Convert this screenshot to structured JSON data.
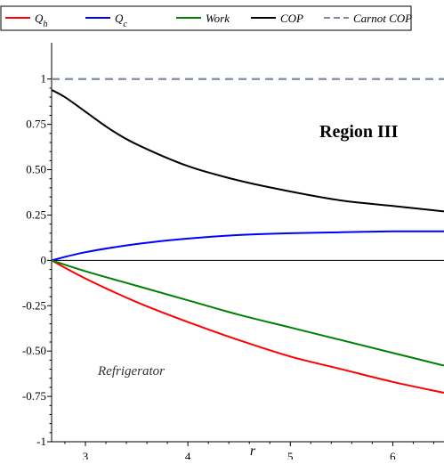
{
  "chart_data": {
    "type": "line",
    "xlabel": "r",
    "ylabel": "",
    "xlim": [
      2.67,
      6.5
    ],
    "ylim": [
      -1,
      1.2
    ],
    "x_ticks": [
      3,
      4,
      5,
      6
    ],
    "y_ticks": [
      {
        "value": 1,
        "label": "1"
      },
      {
        "value": 0.75,
        "label": "0.75"
      },
      {
        "value": 0.5,
        "label": "0.50"
      },
      {
        "value": 0.25,
        "label": "0.25"
      },
      {
        "value": 0,
        "label": "0"
      },
      {
        "value": -0.25,
        "label": "-0.25"
      },
      {
        "value": -0.5,
        "label": "-0.50"
      },
      {
        "value": -0.75,
        "label": "-0.75"
      },
      {
        "value": -1,
        "label": "-1"
      }
    ],
    "grid": false,
    "legend_position": "top",
    "annotations": {
      "region": "Region III",
      "note": "Refrigerator"
    },
    "series": [
      {
        "name": "Q_h",
        "legend_main": "Q",
        "legend_sub": "h",
        "color": "#ff0000",
        "dash": "solid",
        "x": [
          2.67,
          3.0,
          3.5,
          4.0,
          4.5,
          5.0,
          5.5,
          6.0,
          6.5
        ],
        "y": [
          0.0,
          -0.1,
          -0.23,
          -0.34,
          -0.44,
          -0.53,
          -0.6,
          -0.67,
          -0.73
        ]
      },
      {
        "name": "Q_c",
        "legend_main": "Q",
        "legend_sub": "c",
        "color": "#0000ff",
        "dash": "solid",
        "x": [
          2.67,
          3.0,
          3.5,
          4.0,
          4.5,
          5.0,
          5.5,
          6.0,
          6.5
        ],
        "y": [
          0.0,
          0.045,
          0.09,
          0.12,
          0.14,
          0.15,
          0.155,
          0.16,
          0.16
        ]
      },
      {
        "name": "Work",
        "legend_main": "Work",
        "legend_sub": "",
        "color": "#008000",
        "dash": "solid",
        "x": [
          2.67,
          3.0,
          3.5,
          4.0,
          4.5,
          5.0,
          5.5,
          6.0,
          6.5
        ],
        "y": [
          0.0,
          -0.06,
          -0.14,
          -0.22,
          -0.3,
          -0.37,
          -0.44,
          -0.51,
          -0.58
        ]
      },
      {
        "name": "COP",
        "legend_main": "COP",
        "legend_sub": "",
        "color": "#000000",
        "dash": "solid",
        "x": [
          2.67,
          2.8,
          3.0,
          3.25,
          3.5,
          4.0,
          4.5,
          5.0,
          5.5,
          6.0,
          6.5
        ],
        "y": [
          0.94,
          0.9,
          0.82,
          0.72,
          0.64,
          0.52,
          0.44,
          0.38,
          0.33,
          0.3,
          0.27
        ]
      },
      {
        "name": "Carnot COP",
        "legend_main": "Carnot COP",
        "legend_sub": "",
        "color": "#7f8ea3",
        "dash": "dashed",
        "x": [
          2.67,
          6.5
        ],
        "y": [
          1.0,
          1.0
        ]
      }
    ]
  }
}
